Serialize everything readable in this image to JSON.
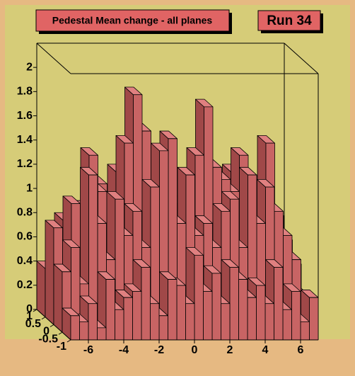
{
  "chart_data": {
    "type": "lego",
    "title": "Pedestal Mean change - all planes",
    "label": "Run 34",
    "xbins": [
      -7,
      -6.5,
      -6,
      -5.5,
      -5,
      -4.5,
      -4,
      -3.5,
      -3,
      -2.5,
      -2,
      -1.5,
      -1,
      -0.5,
      0,
      0.5,
      1,
      1.5,
      2,
      2.5,
      3,
      3.5,
      4,
      4.5,
      5,
      5.5,
      6,
      6.5,
      7
    ],
    "ybins": [
      -1,
      -0.5,
      0,
      0.5,
      1
    ],
    "values": [
      [
        0.2,
        0.15,
        0.3,
        0.1,
        0.5,
        0.25,
        0.35,
        0.4,
        0.6,
        0.3,
        0.2,
        0.5,
        0.45,
        0.3,
        0.7,
        0.4,
        0.55,
        0.3,
        0.6,
        0.5,
        0.35,
        0.45,
        0.3,
        0.6,
        0.25,
        0.4,
        0.15,
        0.35
      ],
      [
        0.5,
        0.7,
        0.4,
        1.3,
        0.9,
        0.6,
        1.1,
        0.8,
        1.0,
        0.7,
        1.2,
        1.5,
        1.6,
        0.9,
        1.3,
        0.8,
        0.9,
        0.7,
        1.0,
        1.1,
        0.7,
        1.3,
        0.9,
        1.2,
        1.0,
        0.8,
        0.6,
        0.3
      ],
      [
        0.8,
        0.6,
        1.0,
        0.7,
        1.4,
        1.1,
        0.9,
        0.8,
        1.5,
        1.9,
        1.6,
        1.2,
        1.1,
        0.9,
        1.0,
        0.8,
        1.4,
        1.8,
        1.3,
        1.2,
        1.1,
        1.4,
        1.2,
        1.0,
        1.5,
        0.9,
        0.7,
        0.5
      ],
      [
        0.4,
        0.6,
        0.8,
        0.5,
        0.9,
        0.7,
        1.1,
        0.9,
        1.2,
        1.0,
        0.8,
        0.9,
        1.0,
        0.8,
        0.9,
        0.7,
        1.0,
        1.1,
        0.8,
        1.0,
        0.9,
        1.2,
        1.0,
        0.8,
        1.1,
        0.9,
        0.6,
        0.5
      ]
    ],
    "color": "#c86464",
    "xlim": [
      -7,
      7
    ],
    "ylim": [
      -1,
      1
    ],
    "zlim": [
      0,
      2.2
    ],
    "xticks": [
      -6,
      -4,
      -2,
      0,
      2,
      4,
      6
    ],
    "yticks": [
      -1,
      -0.5,
      0,
      0.5,
      1
    ],
    "zticks": [
      0,
      0.2,
      0.4,
      0.6,
      0.8,
      1,
      1.2,
      1.4,
      1.6,
      1.8,
      2
    ]
  }
}
